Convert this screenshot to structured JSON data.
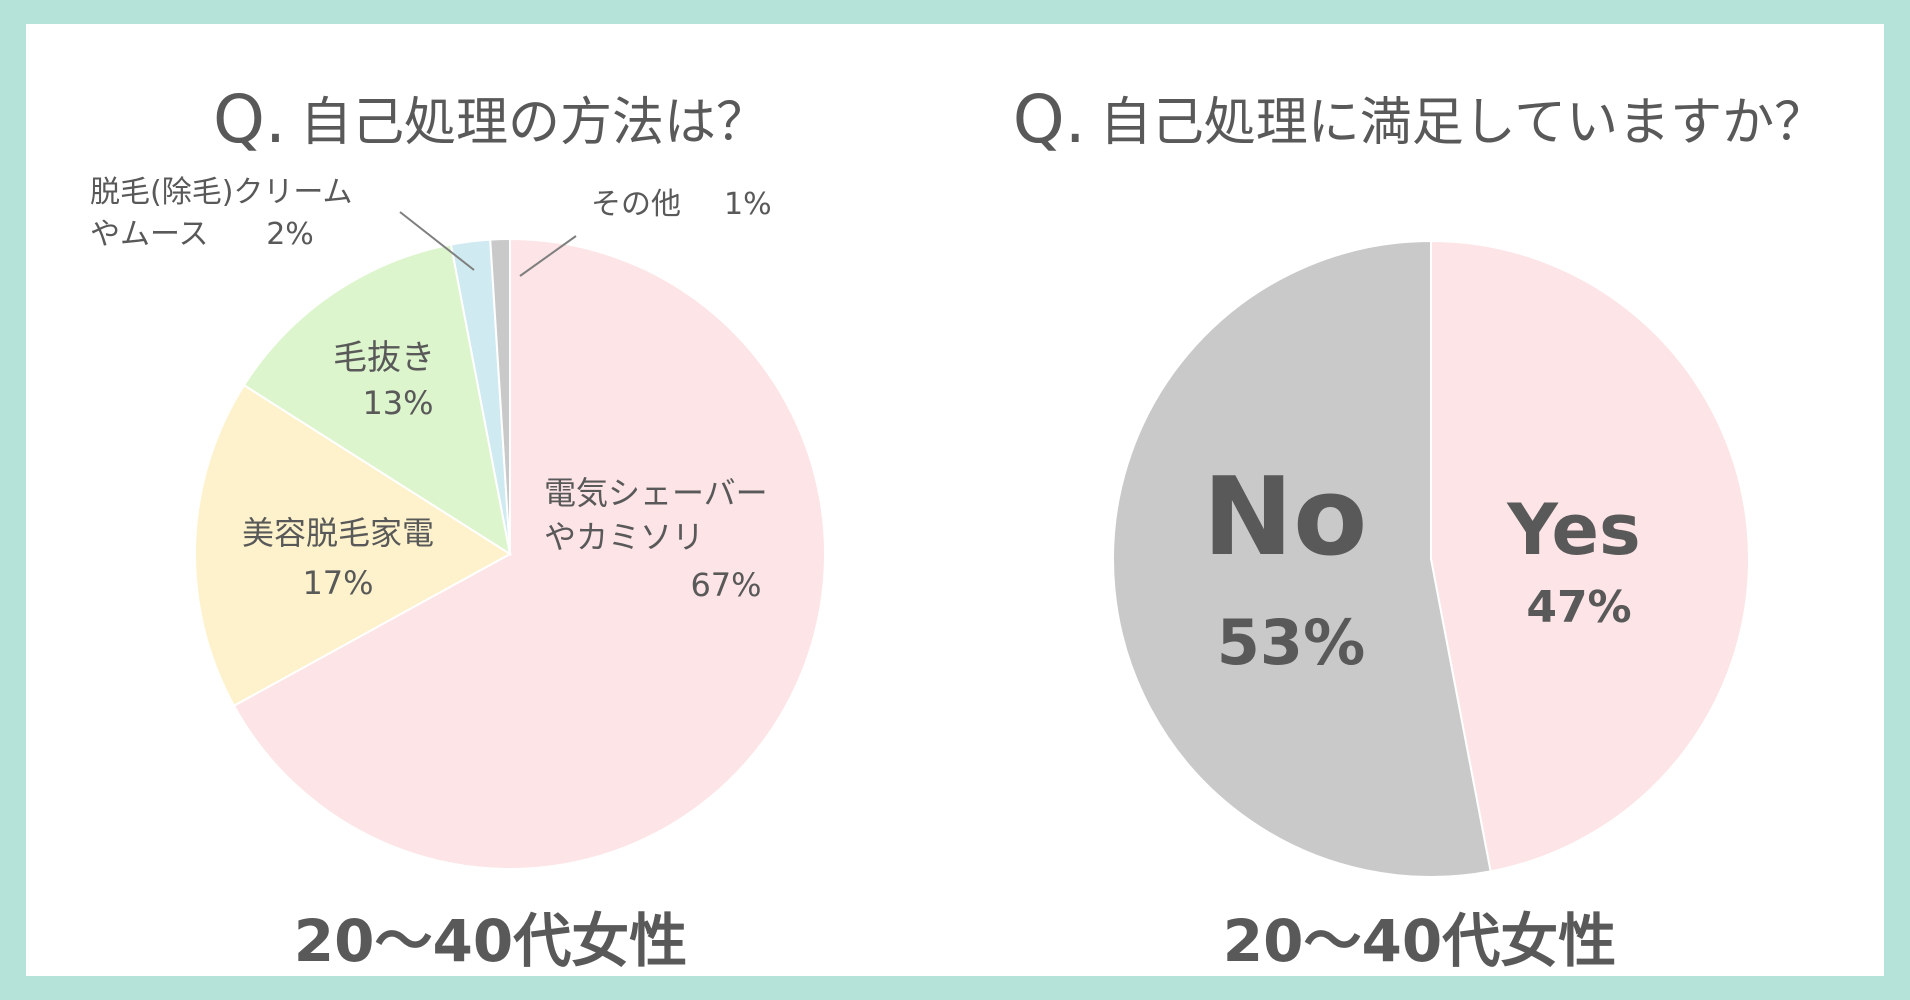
{
  "colors": {
    "background_border": "#b5e3d9",
    "panel": "#ffffff",
    "text": "#595959",
    "pink": "#fde4e6",
    "yellow": "#fdf2cc",
    "green": "#ddf5cd",
    "light_blue": "#cfeaf0",
    "gray": "#c9c9c9"
  },
  "chart_data": [
    {
      "type": "pie",
      "title_mark": "Q.",
      "title": "自己処理の方法は？",
      "group_label": "20〜40代女性",
      "slices": [
        {
          "label_lines": [
            "電気シェーバー",
            "やカミソリ"
          ],
          "value_label": "67%",
          "value": 67,
          "color": "#fde4e6"
        },
        {
          "label_lines": [
            "美容脱毛家電"
          ],
          "value_label": "17%",
          "value": 17,
          "color": "#fdf2cc"
        },
        {
          "label_lines": [
            "毛抜き"
          ],
          "value_label": "13%",
          "value": 13,
          "color": "#ddf5cd"
        },
        {
          "label_lines": [
            "脱毛(除毛)クリーム",
            "やムース"
          ],
          "value_label": "2%",
          "value": 2,
          "color": "#cfeaf0"
        },
        {
          "label_lines": [
            "その他"
          ],
          "value_label": "1%",
          "value": 1,
          "color": "#c9c9c9"
        }
      ]
    },
    {
      "type": "pie",
      "title_mark": "Q.",
      "title": "自己処理に満足していますか？",
      "group_label": "20〜40代女性",
      "slices": [
        {
          "label_lines": [
            "Yes"
          ],
          "value_label": "47%",
          "value": 47,
          "color": "#fde4e6"
        },
        {
          "label_lines": [
            "No"
          ],
          "value_label": "53%",
          "value": 53,
          "color": "#c9c9c9"
        }
      ]
    }
  ]
}
